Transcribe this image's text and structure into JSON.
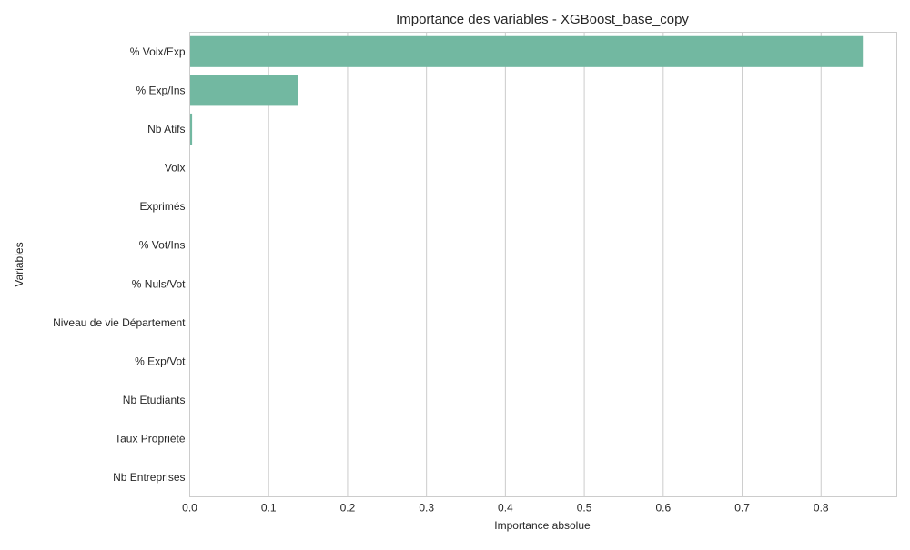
{
  "chart_data": {
    "type": "bar",
    "orientation": "horizontal",
    "title": "Importance des variables - XGBoost_base_copy",
    "xlabel": "Importance absolue",
    "ylabel": "Variables",
    "categories": [
      "% Voix/Exp",
      "% Exp/Ins",
      "Nb Atifs",
      "Voix",
      "Exprimés",
      "% Vot/Ins",
      "% Nuls/Vot",
      "Niveau de vie Département",
      "% Exp/Vot",
      "Nb Etudiants",
      "Taux Propriété",
      "Nb Entreprises"
    ],
    "values": [
      0.853,
      0.137,
      0.003,
      0,
      0,
      0,
      0,
      0,
      0,
      0,
      0,
      0
    ],
    "xlim": [
      0,
      0.896
    ],
    "xticks": [
      "0.0",
      "0.1",
      "0.2",
      "0.3",
      "0.4",
      "0.5",
      "0.6",
      "0.7",
      "0.8"
    ],
    "xtick_values": [
      0,
      0.1,
      0.2,
      0.3,
      0.4,
      0.5,
      0.6,
      0.7,
      0.8
    ],
    "grid": "vertical",
    "bar_color": "#72b8a1"
  }
}
